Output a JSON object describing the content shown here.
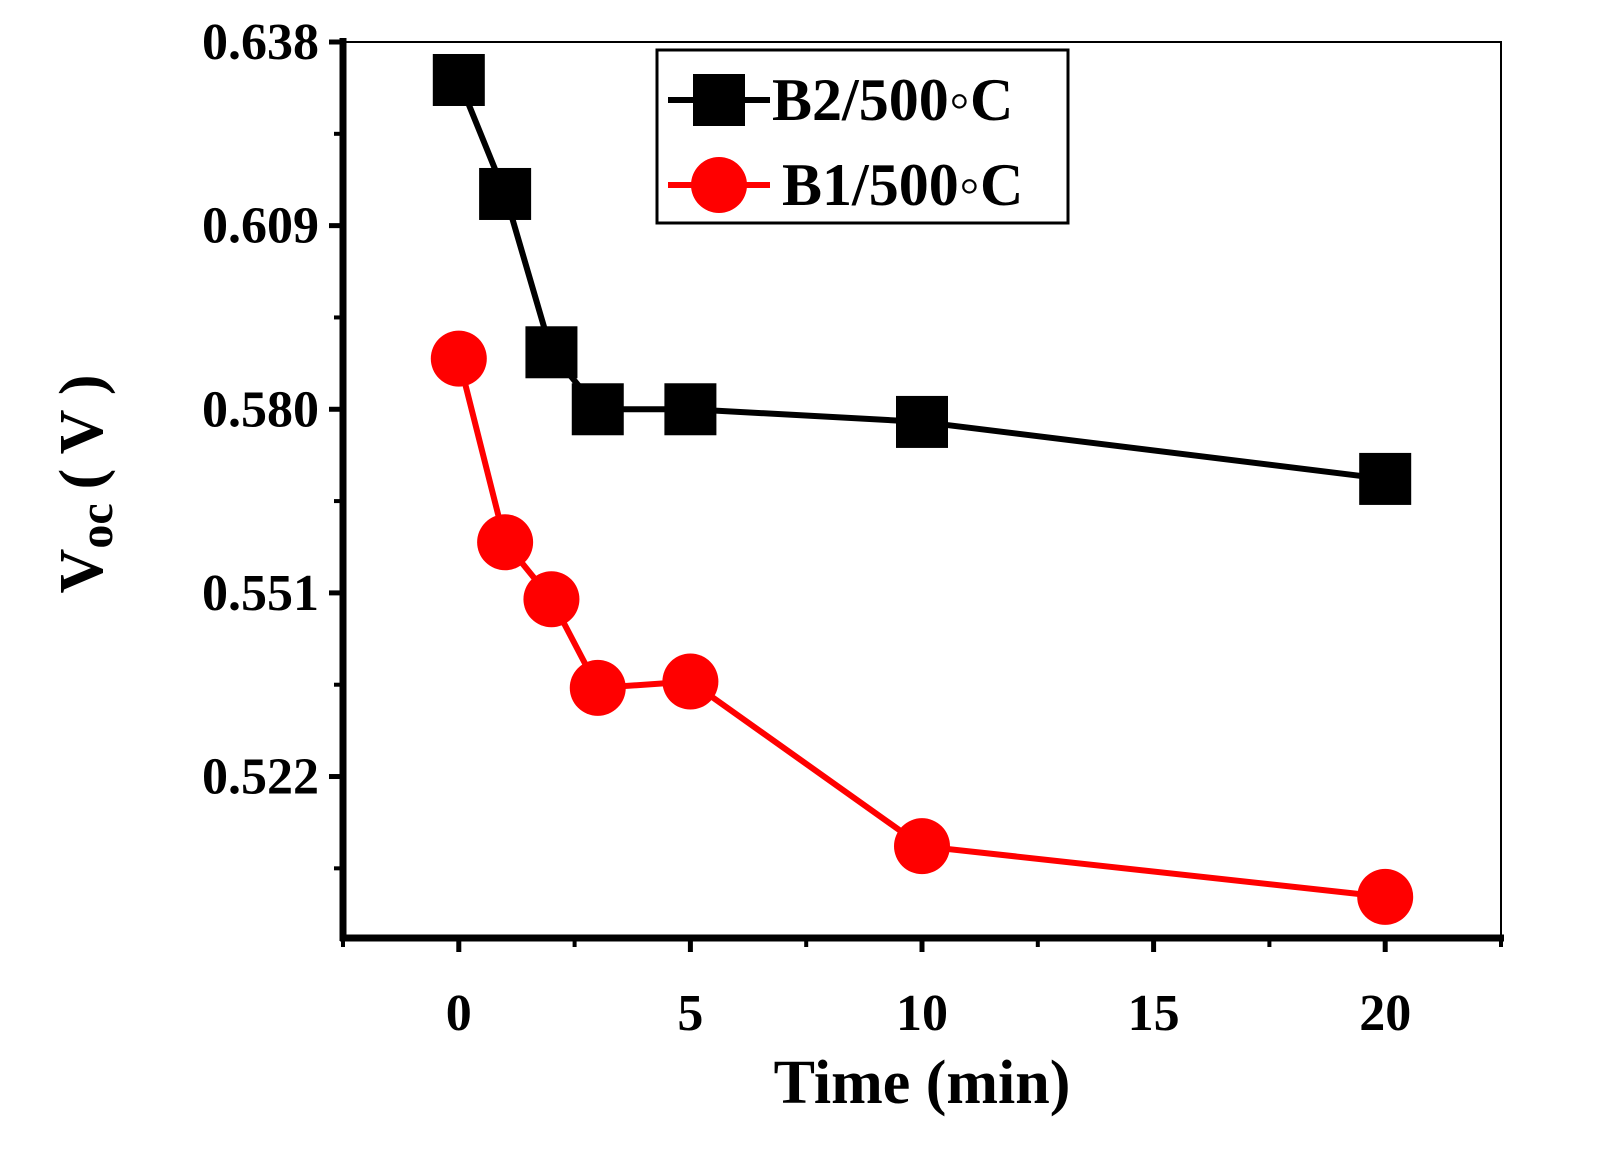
{
  "chart_data": {
    "type": "line",
    "title": "",
    "xlabel": "Time (min)",
    "ylabel": "Voc (V)",
    "ylabel_main": "V",
    "ylabel_sub": "oc",
    "ylabel_unit": "( V )",
    "x_ticks": [
      0,
      5,
      10,
      15,
      20
    ],
    "x_tick_labels": [
      "0",
      "5",
      "10",
      "15",
      "20"
    ],
    "y_ticks": [
      0.638,
      0.609,
      0.58,
      0.551,
      0.522
    ],
    "y_tick_labels": [
      "0.638",
      "0.609",
      "0.580",
      "0.551",
      "0.522"
    ],
    "xlim": [
      -2.5,
      22.5
    ],
    "ylim": [
      0.4965,
      0.638
    ],
    "grid": false,
    "legend_position": "top-center",
    "series": [
      {
        "name": "B2/500◦C",
        "color": "#000000",
        "marker": "square",
        "x": [
          0,
          1,
          2,
          3,
          5,
          10,
          20
        ],
        "y": [
          0.632,
          0.614,
          0.589,
          0.58,
          0.58,
          0.578,
          0.569
        ]
      },
      {
        "name": "B1/500◦C",
        "color": "#ff0000",
        "marker": "circle",
        "x": [
          0,
          1,
          2,
          3,
          5,
          10,
          20
        ],
        "y": [
          0.588,
          0.559,
          0.55,
          0.536,
          0.537,
          0.511,
          0.503
        ]
      }
    ]
  }
}
